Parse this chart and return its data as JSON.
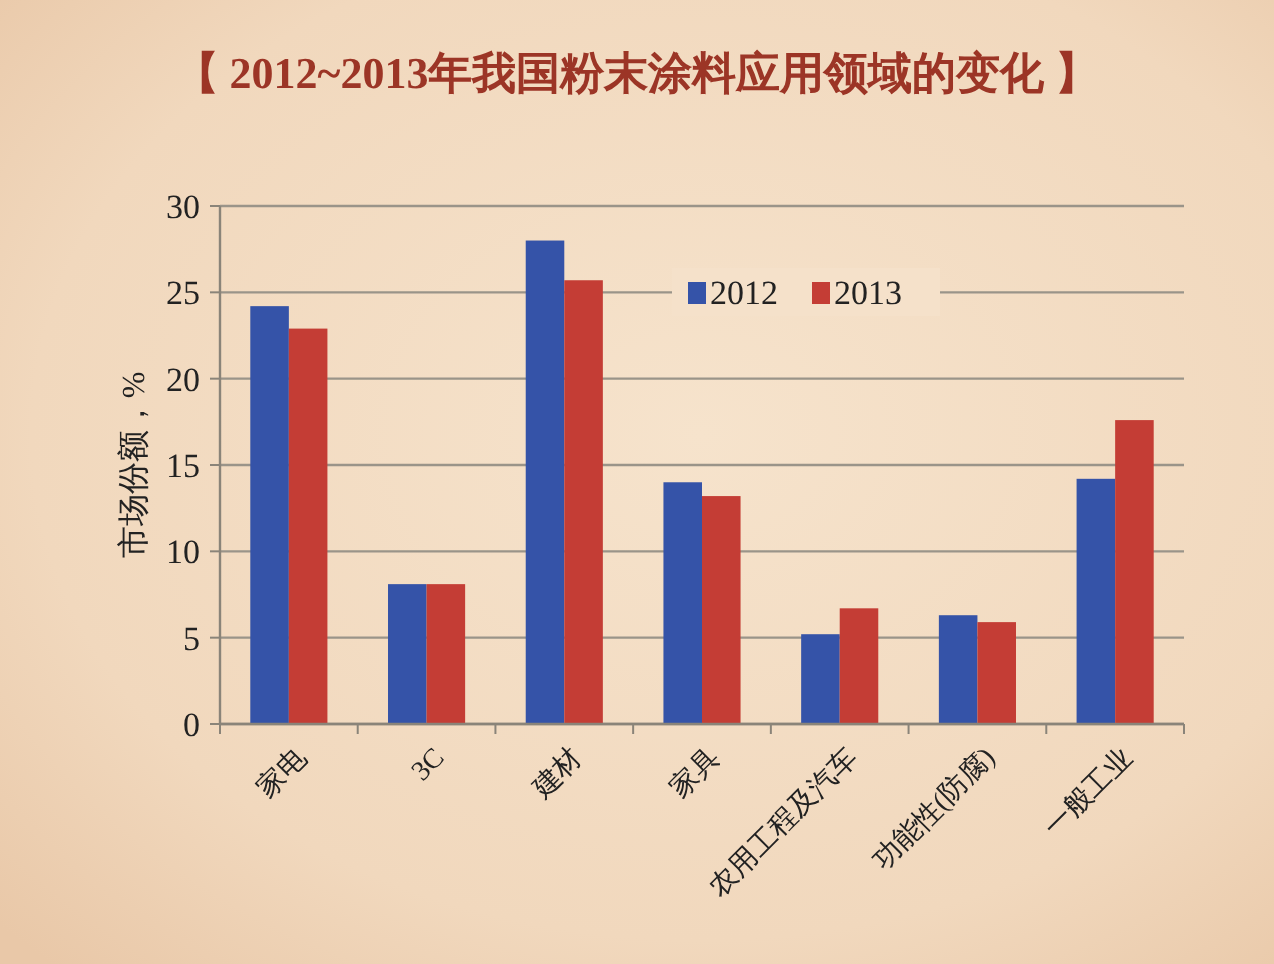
{
  "chart_data": {
    "type": "bar",
    "title": "【 2012~2013年我国粉末涂料应用领域的变化 】",
    "ylabel": "市场份额，%",
    "categories": [
      "家电",
      "3C",
      "建材",
      "家具",
      "农用工程及汽车",
      "功能性(防腐)",
      "一般工业"
    ],
    "series": [
      {
        "name": "2012",
        "color": "#3553a8",
        "values": [
          24.2,
          8.1,
          28.0,
          14.0,
          5.2,
          6.3,
          14.2
        ]
      },
      {
        "name": "2013",
        "color": "#c43d35",
        "values": [
          22.9,
          8.1,
          25.7,
          13.2,
          6.7,
          5.9,
          17.6
        ]
      }
    ],
    "ylim": [
      0,
      30
    ],
    "yticks": [
      0,
      5,
      10,
      15,
      20,
      25,
      30
    ],
    "grid": "y",
    "legend": "top"
  }
}
